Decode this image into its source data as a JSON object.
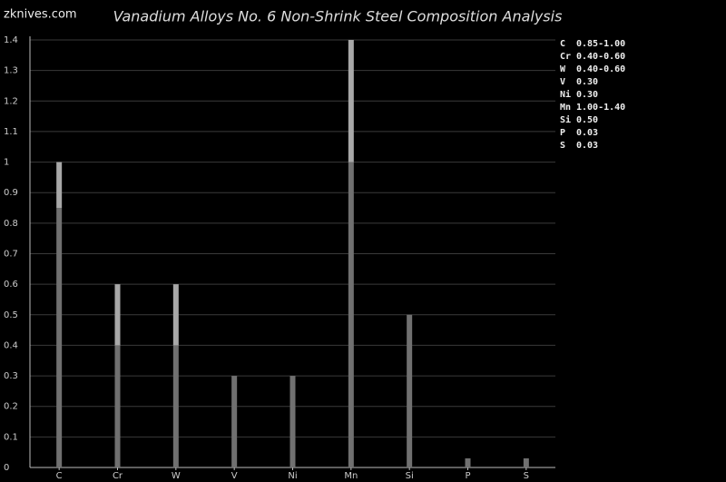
{
  "site": "zknives.com",
  "chart_data": {
    "type": "range-bar",
    "title": "Vanadium Alloys No. 6 Non-Shrink Steel Composition Analysis",
    "categories": [
      "C",
      "Cr",
      "W",
      "V",
      "Ni",
      "Mn",
      "Si",
      "P",
      "S"
    ],
    "values": [
      0.85,
      0.4,
      0.4,
      0.3,
      0.3,
      1.0,
      0.5,
      0.03,
      0.03
    ],
    "values_high": [
      1.0,
      0.6,
      0.6,
      0.3,
      0.3,
      1.4,
      0.5,
      0.03,
      0.03
    ],
    "legend_labels": [
      "0.85-1.00",
      "0.40-0.60",
      "0.40-0.60",
      "0.30",
      "0.30",
      "1.00-1.40",
      "0.50",
      "0.03",
      "0.03"
    ],
    "color": "#707070",
    "high_color": "#a8a8a8",
    "ylim": [
      0,
      1.4
    ],
    "yticks": [
      0,
      0.1,
      0.2,
      0.3,
      0.4,
      0.5,
      0.6,
      0.7,
      0.8,
      0.9,
      1,
      1.1,
      1.2,
      1.3,
      1.4
    ],
    "grid": true
  }
}
